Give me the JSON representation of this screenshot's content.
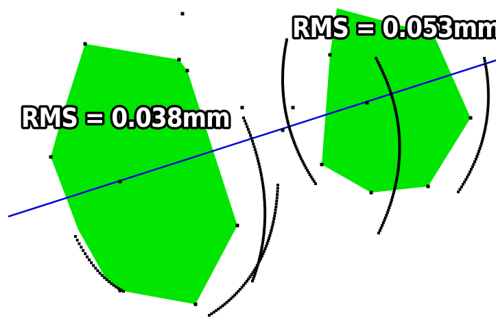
{
  "labels": {
    "left": "RMS = 0.038mm",
    "right": "RMS = 0.053mm"
  },
  "colors": {
    "polygon_fill": "#00e600",
    "fit_line": "#0000dd",
    "points": "#000000",
    "background": "#ffffff"
  }
}
